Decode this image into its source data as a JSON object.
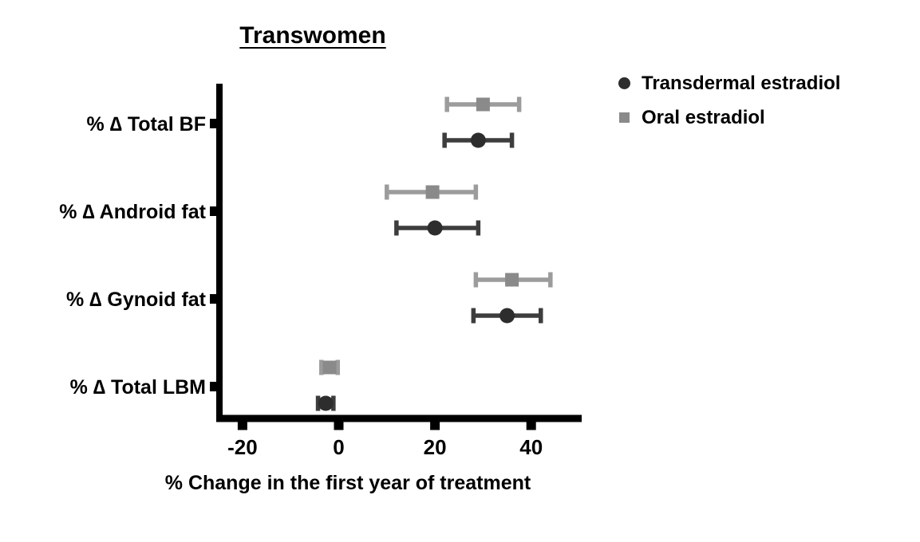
{
  "page": {
    "background": "#ffffff"
  },
  "chart_data": {
    "type": "scatter",
    "subtype": "horizontal point estimates with error bars (forest-style plot)",
    "title": "Transwomen",
    "xlabel": "% Change in the first year of treatment",
    "categories": [
      "% ∆ Total BF",
      "% ∆ Android fat",
      "% ∆ Gynoid fat",
      "% ∆ Total LBM"
    ],
    "x_ticks": [
      -20,
      0,
      20,
      40
    ],
    "xlim": [
      -25,
      50.5
    ],
    "grid": false,
    "legend_position": "top-right",
    "axis_color": "#000000",
    "text_color": "#000000",
    "series": [
      {
        "name": "Transdermal estradiol",
        "marker": "circle",
        "marker_color": "#2d2d2d",
        "line_color": "#3d3d3d",
        "values": [
          {
            "category": "% ∆ Total BF",
            "mean": 29,
            "lo": 22,
            "hi": 36
          },
          {
            "category": "% ∆ Android fat",
            "mean": 20,
            "lo": 12,
            "hi": 29
          },
          {
            "category": "% ∆ Gynoid fat",
            "mean": 35,
            "lo": 28,
            "hi": 42
          },
          {
            "category": "% ∆ Total LBM",
            "mean": -2.7,
            "lo": -4.3,
            "hi": -1.1
          }
        ]
      },
      {
        "name": "Oral estradiol",
        "marker": "square",
        "marker_color": "#8a8a8a",
        "line_color": "#9c9c9c",
        "values": [
          {
            "category": "% ∆ Total BF",
            "mean": 30,
            "lo": 22.5,
            "hi": 37.5
          },
          {
            "category": "% ∆ Android fat",
            "mean": 19.5,
            "lo": 10,
            "hi": 28.5
          },
          {
            "category": "% ∆ Gynoid fat",
            "mean": 36,
            "lo": 28.5,
            "hi": 44
          },
          {
            "category": "% ∆ Total LBM",
            "mean": -1.9,
            "lo": -3.6,
            "hi": -0.2
          }
        ]
      }
    ]
  }
}
